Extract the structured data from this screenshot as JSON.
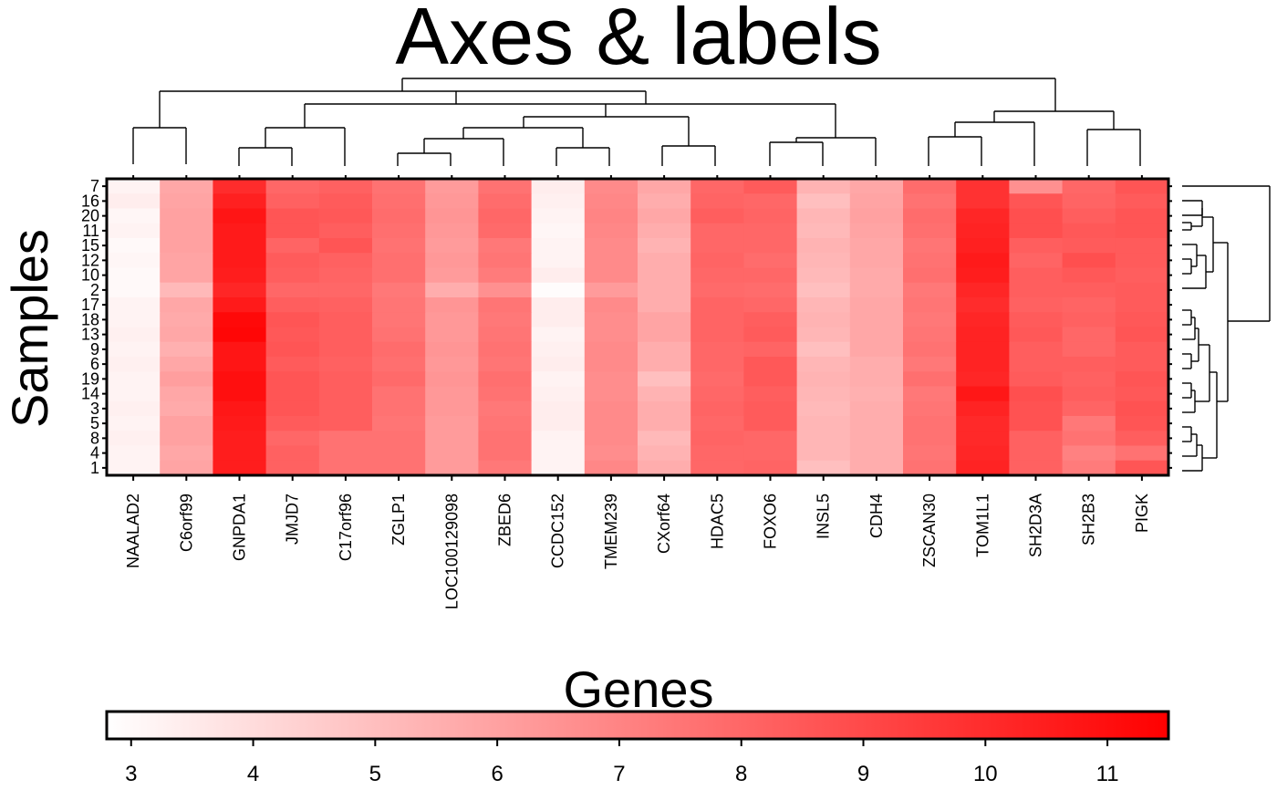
{
  "chart_data": {
    "type": "heatmap",
    "title": "Axes & labels",
    "xlabel": "Genes",
    "ylabel": "Samples",
    "columns": [
      "NAALAD2",
      "C6orf99",
      "GNPDA1",
      "JMJD7",
      "C17orf96",
      "ZGLP1",
      "LOC100129098",
      "ZBED6",
      "CCDC152",
      "TMEM239",
      "CXorf64",
      "HDAC5",
      "FOXO6",
      "INSL5",
      "CDH4",
      "ZSCAN30",
      "TOM1L1",
      "SH2D3A",
      "SH2B3",
      "PIGK"
    ],
    "rows": [
      "7",
      "16",
      "20",
      "11",
      "15",
      "12",
      "10",
      "2",
      "17",
      "18",
      "13",
      "9",
      "6",
      "19",
      "14",
      "3",
      "5",
      "8",
      "4",
      "1"
    ],
    "values": [
      [
        3.2,
        5.8,
        10.0,
        8.0,
        8.2,
        7.6,
        6.2,
        7.6,
        3.4,
        6.8,
        5.8,
        8.0,
        8.4,
        5.4,
        5.8,
        7.8,
        9.8,
        6.6,
        8.0,
        8.6
      ],
      [
        3.4,
        5.9,
        10.4,
        8.2,
        8.4,
        7.7,
        6.3,
        7.8,
        3.3,
        6.9,
        5.6,
        8.1,
        8.0,
        5.0,
        5.9,
        7.6,
        9.8,
        8.6,
        8.1,
        8.4
      ],
      [
        3.1,
        6.0,
        10.8,
        8.6,
        8.5,
        7.8,
        6.4,
        8.0,
        3.2,
        7.0,
        5.8,
        8.3,
        8.1,
        5.3,
        6.0,
        7.8,
        10.2,
        8.8,
        8.3,
        8.6
      ],
      [
        3.2,
        6.0,
        10.6,
        8.6,
        8.3,
        7.7,
        6.3,
        7.9,
        3.1,
        6.9,
        5.6,
        8.0,
        8.0,
        5.2,
        5.9,
        7.7,
        10.3,
        8.8,
        8.5,
        8.6
      ],
      [
        3.0,
        6.0,
        10.6,
        8.1,
        8.6,
        7.6,
        6.2,
        7.4,
        3.2,
        6.8,
        5.4,
        8.0,
        8.0,
        5.4,
        5.8,
        7.5,
        10.4,
        8.3,
        8.4,
        8.4
      ],
      [
        3.1,
        5.9,
        10.6,
        8.4,
        8.2,
        7.7,
        6.3,
        7.5,
        3.2,
        6.8,
        5.6,
        8.1,
        7.8,
        5.3,
        5.8,
        7.6,
        10.6,
        8.1,
        8.8,
        8.4
      ],
      [
        3.0,
        5.9,
        10.5,
        8.3,
        8.1,
        7.7,
        6.2,
        7.3,
        3.4,
        6.8,
        5.6,
        8.0,
        8.0,
        5.2,
        5.7,
        7.7,
        10.5,
        8.3,
        8.5,
        8.3
      ],
      [
        3.0,
        5.2,
        10.2,
        8.0,
        8.0,
        7.4,
        5.6,
        6.6,
        2.9,
        6.2,
        5.6,
        7.9,
        7.8,
        5.0,
        5.7,
        7.4,
        10.2,
        8.3,
        8.3,
        8.4
      ],
      [
        3.2,
        5.8,
        10.6,
        8.3,
        8.2,
        7.5,
        6.4,
        7.5,
        3.4,
        6.8,
        5.6,
        8.1,
        8.0,
        5.3,
        5.8,
        7.5,
        10.0,
        8.2,
        8.1,
        8.4
      ],
      [
        3.2,
        5.7,
        11.2,
        8.6,
        8.3,
        7.5,
        6.3,
        7.4,
        3.4,
        6.7,
        5.9,
        8.1,
        8.3,
        5.4,
        5.8,
        7.4,
        10.2,
        8.4,
        8.2,
        8.5
      ],
      [
        3.3,
        5.8,
        11.3,
        8.5,
        8.3,
        7.6,
        6.3,
        7.5,
        3.2,
        6.7,
        5.9,
        8.1,
        8.4,
        5.3,
        5.8,
        7.5,
        10.3,
        8.5,
        8.0,
        8.6
      ],
      [
        3.2,
        5.5,
        10.8,
        8.6,
        8.3,
        7.8,
        6.4,
        7.6,
        3.3,
        6.8,
        5.6,
        8.0,
        8.1,
        5.0,
        5.8,
        7.6,
        10.3,
        8.3,
        8.0,
        8.4
      ],
      [
        3.3,
        5.8,
        10.8,
        8.4,
        8.2,
        7.7,
        6.3,
        7.5,
        3.4,
        6.8,
        5.6,
        8.0,
        8.5,
        5.3,
        5.6,
        7.4,
        10.3,
        8.3,
        8.3,
        8.4
      ],
      [
        3.2,
        6.1,
        11.0,
        8.6,
        8.3,
        7.9,
        6.4,
        7.7,
        3.2,
        6.7,
        5.0,
        7.9,
        8.5,
        5.4,
        5.6,
        7.7,
        10.2,
        8.4,
        8.2,
        8.6
      ],
      [
        3.2,
        5.8,
        11.0,
        8.6,
        8.3,
        7.6,
        6.3,
        7.6,
        3.3,
        6.7,
        5.4,
        8.0,
        8.3,
        5.3,
        5.5,
        7.4,
        10.7,
        8.8,
        8.3,
        8.5
      ],
      [
        3.3,
        5.7,
        10.7,
        8.6,
        8.3,
        7.6,
        6.3,
        7.4,
        3.4,
        6.8,
        5.6,
        8.1,
        8.4,
        5.2,
        5.6,
        7.5,
        10.3,
        8.7,
        8.1,
        8.7
      ],
      [
        3.2,
        6.0,
        10.6,
        8.4,
        8.3,
        7.5,
        6.2,
        7.5,
        3.4,
        6.8,
        5.6,
        8.0,
        8.4,
        5.3,
        5.6,
        7.6,
        10.1,
        8.7,
        7.4,
        8.6
      ],
      [
        3.3,
        6.0,
        10.5,
        8.0,
        7.6,
        7.6,
        6.2,
        7.6,
        3.2,
        6.8,
        5.2,
        8.1,
        8.0,
        5.3,
        5.6,
        7.6,
        10.1,
        8.2,
        7.6,
        8.3
      ],
      [
        3.2,
        5.8,
        10.5,
        8.2,
        7.6,
        7.6,
        6.2,
        7.6,
        3.2,
        6.7,
        5.4,
        8.0,
        8.0,
        5.3,
        5.6,
        7.5,
        10.2,
        8.2,
        7.1,
        7.6
      ],
      [
        3.2,
        5.9,
        10.5,
        8.2,
        7.6,
        7.6,
        6.2,
        7.4,
        3.2,
        6.9,
        5.6,
        8.0,
        8.1,
        5.0,
        5.6,
        7.6,
        10.3,
        8.2,
        7.3,
        8.6
      ]
    ],
    "colorbar": {
      "min": 2.8,
      "max": 11.5,
      "ticks": [
        3,
        4,
        5,
        6,
        7,
        8,
        9,
        10,
        11
      ],
      "low_color": "#ffffff",
      "high_color": "#ff0000"
    },
    "column_dendrogram": true,
    "row_dendrogram": true
  }
}
